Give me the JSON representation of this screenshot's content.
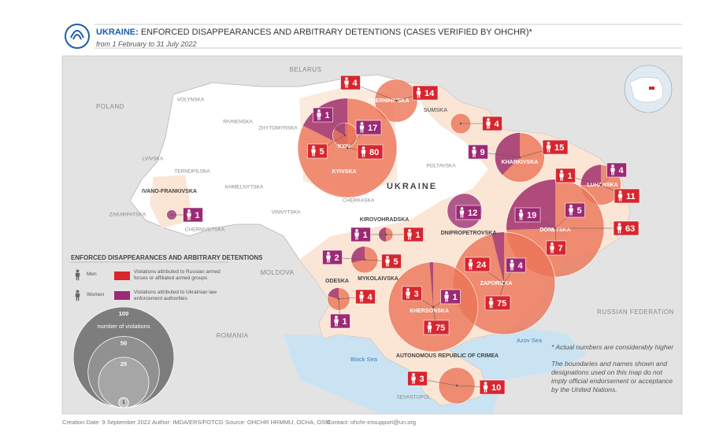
{
  "header": {
    "title_bold": "UKRAINE:",
    "title": "ENFORCED DISAPPEARANCES AND ARBITRARY DETENTIONS (CASES VERIFIED BY OHCHR)*",
    "subtitle": "from 1 February to 31 July 2022"
  },
  "map": {
    "country_label": "UKRAINE",
    "neighbors": [
      "BELARUS",
      "POLAND",
      "MOLDOVA",
      "ROMANIA",
      "RUSSIAN FEDERATION"
    ],
    "seas": [
      "Black Sea",
      "Azov Sea"
    ],
    "oblasts": [
      "VOLYNSKA",
      "RIVNENSKA",
      "ZHYTOMYRSKA",
      "LVIVSKA",
      "TERNOPILSKA",
      "KHMELNYTSKA",
      "ZAKARPATSKA",
      "CHERNIVETSKA",
      "VINNYTSKA",
      "CHERKASKA",
      "POLTAVSKA",
      "SEVASTOPOL"
    ]
  },
  "categories": {
    "russian": {
      "color": "#d7262f"
    },
    "ukrainian": {
      "color": "#9c2a74"
    }
  },
  "regions": [
    {
      "name": "CHERNIHIVSKA",
      "markers": [
        {
          "value": 4,
          "category": "russian"
        },
        {
          "value": 14,
          "category": "russian"
        }
      ]
    },
    {
      "name": "KYIVSKA",
      "markers": [
        {
          "value": 17,
          "category": "ukrainian"
        },
        {
          "value": 80,
          "category": "russian"
        }
      ]
    },
    {
      "name": "KYIV",
      "markers": [
        {
          "value": 1,
          "category": "ukrainian"
        },
        {
          "value": 5,
          "category": "russian"
        }
      ]
    },
    {
      "name": "SUMSKA",
      "markers": [
        {
          "value": 4,
          "category": "russian"
        }
      ]
    },
    {
      "name": "KHARKIVSKA",
      "markers": [
        {
          "value": 9,
          "category": "ukrainian"
        },
        {
          "value": 15,
          "category": "russian"
        }
      ]
    },
    {
      "name": "LUHANSKA",
      "markers": [
        {
          "value": 4,
          "category": "ukrainian"
        },
        {
          "value": 1,
          "category": "russian"
        },
        {
          "value": 11,
          "category": "russian"
        }
      ]
    },
    {
      "name": "DONETSKA",
      "markers": [
        {
          "value": 19,
          "category": "ukrainian"
        },
        {
          "value": 5,
          "category": "ukrainian"
        },
        {
          "value": 63,
          "category": "russian"
        },
        {
          "value": 7,
          "category": "russian"
        }
      ]
    },
    {
      "name": "DNIPROPETROVSKA",
      "markers": [
        {
          "value": 12,
          "category": "ukrainian"
        }
      ]
    },
    {
      "name": "ZAPORIZKA",
      "markers": [
        {
          "value": 24,
          "category": "russian"
        },
        {
          "value": 4,
          "category": "ukrainian"
        },
        {
          "value": 75,
          "category": "russian"
        }
      ]
    },
    {
      "name": "KHERSONSKA",
      "markers": [
        {
          "value": 3,
          "category": "russian"
        },
        {
          "value": 1,
          "category": "ukrainian"
        },
        {
          "value": 75,
          "category": "russian"
        }
      ]
    },
    {
      "name": "MYKOLAIVSKA",
      "markers": [
        {
          "value": 2,
          "category": "ukrainian"
        },
        {
          "value": 5,
          "category": "russian"
        }
      ]
    },
    {
      "name": "ODESKA",
      "markers": [
        {
          "value": 4,
          "category": "russian"
        },
        {
          "value": 1,
          "category": "ukrainian"
        }
      ]
    },
    {
      "name": "KIROVOHRADSKA",
      "markers": [
        {
          "value": 1,
          "category": "ukrainian"
        },
        {
          "value": 1,
          "category": "russian"
        }
      ]
    },
    {
      "name": "IVANO-FRANKIVSKA",
      "markers": [
        {
          "value": 1,
          "category": "ukrainian"
        }
      ]
    },
    {
      "name": "AUTONOMOUS REPUBLIC OF CRIMEA",
      "markers": [
        {
          "value": 3,
          "category": "russian"
        },
        {
          "value": 10,
          "category": "russian"
        }
      ]
    }
  ],
  "legend": {
    "title": "ENFORCED DISAPPEARANCES AND ARBITRARY DETENTIONS",
    "men": "Men",
    "women": "Women",
    "russian": "Violations attributed to Russian armed forces or affiliated armed groups",
    "ukrainian": "Violations attributed to Ukrainian law enforcement authorities",
    "size_title": "number of violations",
    "sizes": [
      100,
      50,
      25,
      1
    ]
  },
  "notes": [
    "* Actual numbers are considerably higher",
    "The boundaries and names shown and designations used on this map do not imply official endorsement or acceptance by the United Nations."
  ],
  "footer": [
    "Creation Date: 9 September 2022",
    "Author: IMDA/ERS/FOTCD",
    "Source: OHCHR HRMMU, OCHA, OSM",
    "Contact: ohchr-imsupport@un.org"
  ]
}
